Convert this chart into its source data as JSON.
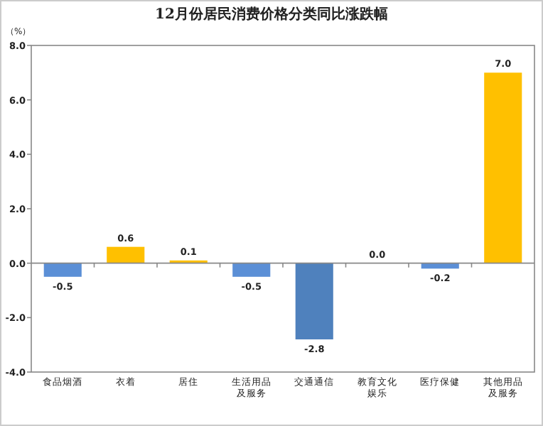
{
  "chart_data": {
    "type": "bar",
    "title": "12月份居民消费价格分类同比涨跌幅",
    "ylabel": "（%）",
    "categories": [
      "食品烟酒",
      "衣着",
      "居住",
      "生活用品及服务",
      "交通通信",
      "教育文化娱乐",
      "医疗保健",
      "其他用品及服务"
    ],
    "values": [
      -0.5,
      0.6,
      0.1,
      -0.5,
      -2.8,
      0.0,
      -0.2,
      7.0
    ],
    "colors": [
      "#5b8fd6",
      "#ffc000",
      "#ffc000",
      "#5b8fd6",
      "#4f81bd",
      "#ffc000",
      "#5b8fd6",
      "#ffc000"
    ],
    "ylim": [
      -4,
      8
    ],
    "yticks": [
      {
        "value": -4,
        "label": "-4.0"
      },
      {
        "value": -2,
        "label": "-2.0"
      },
      {
        "value": 0,
        "label": "0.0"
      },
      {
        "value": 2,
        "label": "2.0"
      },
      {
        "value": 4,
        "label": "4.0"
      },
      {
        "value": 6,
        "label": "6.0"
      },
      {
        "value": 8,
        "label": "8.0"
      }
    ],
    "value_labels": [
      "-0.5",
      "0.6",
      "0.1",
      "-0.5",
      "-2.8",
      "0.0",
      "-0.2",
      "7.0"
    ]
  }
}
